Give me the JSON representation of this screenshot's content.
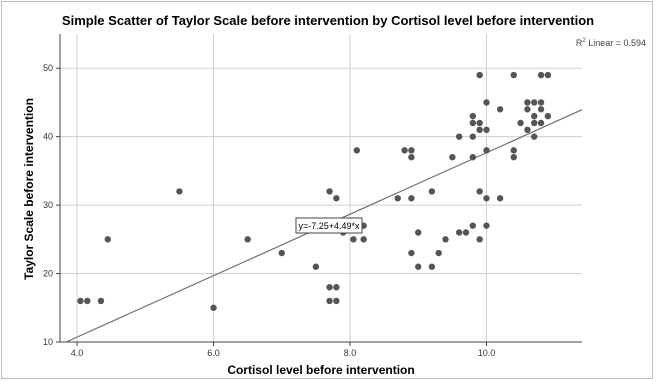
{
  "chart_data": {
    "type": "scatter",
    "title": "Simple Scatter of Taylor Scale before intervention by Cortisol level before intervention",
    "xlabel": "Cortisol level before intervention",
    "ylabel": "Taylor Scale before intervention",
    "xlim": [
      3.75,
      11.4
    ],
    "ylim": [
      10,
      55
    ],
    "x_ticks": [
      4.0,
      6.0,
      8.0,
      10.0
    ],
    "x_tick_labels": [
      "4.0",
      "6.0",
      "8.0",
      "10.0"
    ],
    "y_ticks": [
      10,
      20,
      30,
      40,
      50
    ],
    "y_tick_labels": [
      "10",
      "20",
      "30",
      "40",
      "50"
    ],
    "grid": true,
    "point_color": "#555555",
    "fit_line": {
      "intercept": -7.25,
      "slope": 4.49,
      "equation_label": "y=-7.25+4.49*x",
      "r2_label": "Linear = 0.594",
      "r2_prefix": "R",
      "r2_superscript": "2",
      "color": "#707070"
    },
    "points": [
      {
        "x": 4.05,
        "y": 16
      },
      {
        "x": 4.15,
        "y": 16
      },
      {
        "x": 4.35,
        "y": 16
      },
      {
        "x": 4.45,
        "y": 25
      },
      {
        "x": 5.5,
        "y": 32
      },
      {
        "x": 6.0,
        "y": 15
      },
      {
        "x": 6.5,
        "y": 25
      },
      {
        "x": 7.0,
        "y": 23
      },
      {
        "x": 7.5,
        "y": 21
      },
      {
        "x": 7.7,
        "y": 32
      },
      {
        "x": 7.7,
        "y": 18
      },
      {
        "x": 7.7,
        "y": 16
      },
      {
        "x": 7.8,
        "y": 31
      },
      {
        "x": 7.8,
        "y": 18
      },
      {
        "x": 7.8,
        "y": 16
      },
      {
        "x": 7.9,
        "y": 26
      },
      {
        "x": 8.05,
        "y": 25
      },
      {
        "x": 8.1,
        "y": 38
      },
      {
        "x": 8.2,
        "y": 27
      },
      {
        "x": 8.2,
        "y": 25
      },
      {
        "x": 8.7,
        "y": 31
      },
      {
        "x": 8.8,
        "y": 38
      },
      {
        "x": 8.9,
        "y": 38
      },
      {
        "x": 8.9,
        "y": 37
      },
      {
        "x": 8.9,
        "y": 31
      },
      {
        "x": 8.9,
        "y": 23
      },
      {
        "x": 9.0,
        "y": 26
      },
      {
        "x": 9.0,
        "y": 21
      },
      {
        "x": 9.2,
        "y": 32
      },
      {
        "x": 9.2,
        "y": 21
      },
      {
        "x": 9.3,
        "y": 23
      },
      {
        "x": 9.4,
        "y": 25
      },
      {
        "x": 9.5,
        "y": 37
      },
      {
        "x": 9.6,
        "y": 40
      },
      {
        "x": 9.6,
        "y": 26
      },
      {
        "x": 9.7,
        "y": 26
      },
      {
        "x": 9.8,
        "y": 43
      },
      {
        "x": 9.8,
        "y": 42
      },
      {
        "x": 9.8,
        "y": 40
      },
      {
        "x": 9.8,
        "y": 37
      },
      {
        "x": 9.8,
        "y": 27
      },
      {
        "x": 9.9,
        "y": 49
      },
      {
        "x": 9.9,
        "y": 42
      },
      {
        "x": 9.9,
        "y": 41
      },
      {
        "x": 9.9,
        "y": 32
      },
      {
        "x": 9.9,
        "y": 25
      },
      {
        "x": 10.0,
        "y": 45
      },
      {
        "x": 10.0,
        "y": 41
      },
      {
        "x": 10.0,
        "y": 38
      },
      {
        "x": 10.0,
        "y": 31
      },
      {
        "x": 10.0,
        "y": 27
      },
      {
        "x": 10.2,
        "y": 44
      },
      {
        "x": 10.2,
        "y": 31
      },
      {
        "x": 10.4,
        "y": 49
      },
      {
        "x": 10.4,
        "y": 38
      },
      {
        "x": 10.4,
        "y": 37
      },
      {
        "x": 10.5,
        "y": 42
      },
      {
        "x": 10.6,
        "y": 45
      },
      {
        "x": 10.6,
        "y": 44
      },
      {
        "x": 10.6,
        "y": 41
      },
      {
        "x": 10.7,
        "y": 45
      },
      {
        "x": 10.7,
        "y": 43
      },
      {
        "x": 10.7,
        "y": 42
      },
      {
        "x": 10.7,
        "y": 40
      },
      {
        "x": 10.8,
        "y": 49
      },
      {
        "x": 10.8,
        "y": 45
      },
      {
        "x": 10.8,
        "y": 44
      },
      {
        "x": 10.8,
        "y": 42
      },
      {
        "x": 10.9,
        "y": 49
      },
      {
        "x": 10.9,
        "y": 43
      }
    ]
  }
}
